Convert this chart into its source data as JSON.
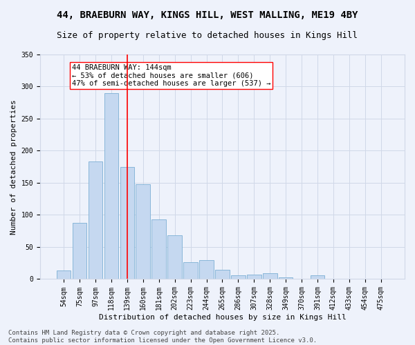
{
  "title": "44, BRAEBURN WAY, KINGS HILL, WEST MALLING, ME19 4BY",
  "subtitle": "Size of property relative to detached houses in Kings Hill",
  "xlabel": "Distribution of detached houses by size in Kings Hill",
  "ylabel": "Number of detached properties",
  "categories": [
    "54sqm",
    "75sqm",
    "97sqm",
    "118sqm",
    "139sqm",
    "160sqm",
    "181sqm",
    "202sqm",
    "223sqm",
    "244sqm",
    "265sqm",
    "286sqm",
    "307sqm",
    "328sqm",
    "349sqm",
    "370sqm",
    "391sqm",
    "412sqm",
    "433sqm",
    "454sqm",
    "475sqm"
  ],
  "values": [
    13,
    88,
    183,
    290,
    175,
    148,
    93,
    68,
    26,
    30,
    14,
    6,
    7,
    9,
    3,
    0,
    6,
    0,
    0,
    0,
    0
  ],
  "bar_color": "#c5d8f0",
  "bar_edge_color": "#7bafd4",
  "grid_color": "#d0d8e8",
  "background_color": "#eef2fb",
  "vline_index": 4,
  "vline_color": "red",
  "annotation_text": "44 BRAEBURN WAY: 144sqm\n← 53% of detached houses are smaller (606)\n47% of semi-detached houses are larger (537) →",
  "annotation_box_color": "white",
  "annotation_box_edgecolor": "red",
  "footer_text": "Contains HM Land Registry data © Crown copyright and database right 2025.\nContains public sector information licensed under the Open Government Licence v3.0.",
  "ylim": [
    0,
    350
  ],
  "yticks": [
    0,
    50,
    100,
    150,
    200,
    250,
    300,
    350
  ],
  "title_fontsize": 10,
  "subtitle_fontsize": 9,
  "axis_label_fontsize": 8,
  "tick_fontsize": 7,
  "annotation_fontsize": 7.5,
  "footer_fontsize": 6.5
}
